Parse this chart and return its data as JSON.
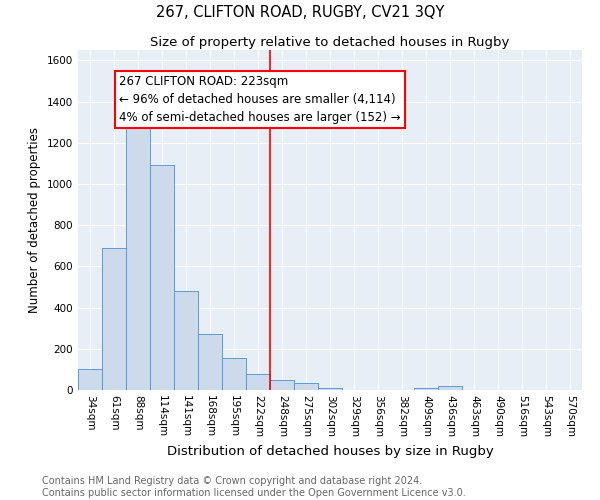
{
  "title": "267, CLIFTON ROAD, RUGBY, CV21 3QY",
  "subtitle": "Size of property relative to detached houses in Rugby",
  "xlabel": "Distribution of detached houses by size in Rugby",
  "ylabel": "Number of detached properties",
  "footer1": "Contains HM Land Registry data © Crown copyright and database right 2024.",
  "footer2": "Contains public sector information licensed under the Open Government Licence v3.0.",
  "annotation_line1": "267 CLIFTON ROAD: 223sqm",
  "annotation_line2": "← 96% of detached houses are smaller (4,114)",
  "annotation_line3": "4% of semi-detached houses are larger (152) →",
  "bar_labels": [
    "34sqm",
    "61sqm",
    "88sqm",
    "114sqm",
    "141sqm",
    "168sqm",
    "195sqm",
    "222sqm",
    "248sqm",
    "275sqm",
    "302sqm",
    "329sqm",
    "356sqm",
    "382sqm",
    "409sqm",
    "436sqm",
    "463sqm",
    "490sqm",
    "516sqm",
    "543sqm",
    "570sqm"
  ],
  "bar_values": [
    100,
    690,
    1340,
    1090,
    480,
    270,
    155,
    80,
    50,
    35,
    10,
    0,
    0,
    0,
    10,
    20,
    0,
    0,
    0,
    0,
    0
  ],
  "bar_color": "#cddaeb",
  "bar_edge_color": "#5b9bd5",
  "red_line_index": 7.5,
  "ylim": [
    0,
    1650
  ],
  "yticks": [
    0,
    200,
    400,
    600,
    800,
    1000,
    1200,
    1400,
    1600
  ],
  "title_fontsize": 10.5,
  "subtitle_fontsize": 9.5,
  "xlabel_fontsize": 9.5,
  "ylabel_fontsize": 8.5,
  "tick_fontsize": 7.5,
  "annotation_fontsize": 8.5,
  "footer_fontsize": 7.0,
  "background_color": "#e8eef5"
}
